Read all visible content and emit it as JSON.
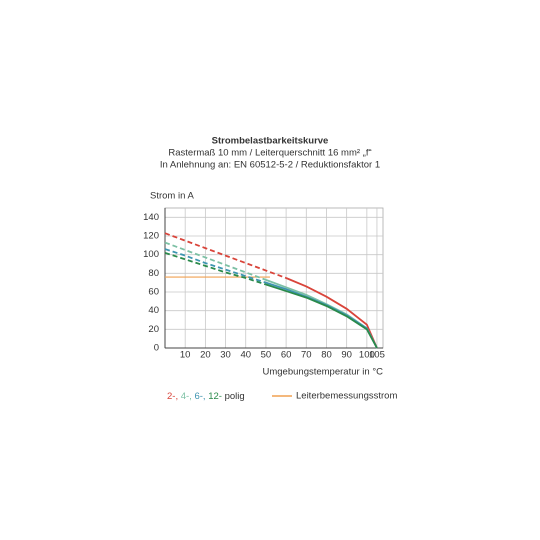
{
  "chart_data": {
    "type": "line",
    "title": "Strombelastbarkeitskurve",
    "subtitle": [
      "Rastermaß 10 mm / Leiterquerschnitt 16 mm² „f“",
      "In Anlehnung an: EN 60512-5-2 / Reduktionsfaktor 1"
    ],
    "y_label": "Strom in A",
    "x_label": "Umgebungstemperatur in °C",
    "x": [
      0,
      10,
      20,
      30,
      40,
      50,
      60,
      70,
      80,
      90,
      100,
      105
    ],
    "series": [
      {
        "name": "2-,",
        "color": "#d9443a",
        "dashed_until": 60,
        "values": [
          123,
          115,
          107,
          99,
          91,
          83,
          75,
          66,
          55,
          42,
          25,
          0
        ]
      },
      {
        "name": "4-,",
        "color": "#7cc0a4",
        "dashed_until": 50,
        "values": [
          113,
          105,
          97,
          89,
          81,
          73,
          65,
          57,
          47,
          36,
          21,
          0
        ]
      },
      {
        "name": "6-,",
        "color": "#3d94b0",
        "dashed_until": 50,
        "values": [
          106,
          99,
          91,
          84,
          77,
          70,
          63,
          55,
          46,
          35,
          21,
          0
        ]
      },
      {
        "name": "12-",
        "color": "#2a8a4a",
        "dashed_until": 50,
        "values": [
          102,
          95,
          88,
          81,
          75,
          68,
          61,
          54,
          45,
          34,
          20,
          0
        ]
      }
    ],
    "legend_suffix": "polig",
    "rated_current": {
      "name": "Leiterbemessungsstrom",
      "color": "#f0a050",
      "value": 76,
      "x_end": 52
    },
    "xlim": [
      0,
      108
    ],
    "ylim": [
      0,
      150
    ],
    "xticks": [
      10,
      20,
      30,
      40,
      50,
      60,
      70,
      80,
      90,
      100,
      105
    ],
    "yticks": [
      0,
      20,
      40,
      60,
      80,
      100,
      120,
      140
    ],
    "grid": true
  }
}
